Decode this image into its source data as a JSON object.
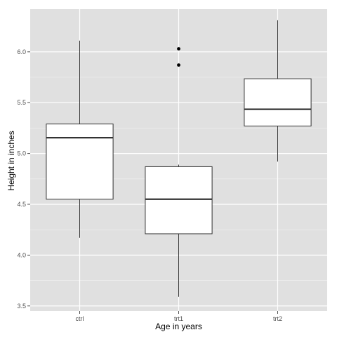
{
  "chart_data": {
    "type": "boxplot",
    "title": "",
    "xlabel": "Age in years",
    "ylabel": "Height in inches",
    "ylim": [
      3.45,
      6.42
    ],
    "yticks": [
      3.5,
      4.0,
      4.5,
      5.0,
      5.5,
      6.0
    ],
    "ytick_labels": [
      "3.5",
      "4.0",
      "4.5",
      "5.0",
      "5.5",
      "6.0"
    ],
    "grid": true,
    "colors": {
      "panel": "#e0e0e0",
      "grid_major": "#ffffff",
      "grid_minor": "#f0f0f0",
      "box_fill": "#ffffff",
      "stroke": "#333333"
    },
    "categories": [
      "ctrl",
      "trt1",
      "trt2"
    ],
    "boxes": [
      {
        "category": "ctrl",
        "whisker_low": 4.17,
        "q1": 4.55,
        "median": 5.155,
        "q3": 5.29,
        "whisker_high": 6.11,
        "outliers": []
      },
      {
        "category": "trt1",
        "whisker_low": 3.59,
        "q1": 4.21,
        "median": 4.55,
        "q3": 4.87,
        "whisker_high": 4.89,
        "outliers": [
          5.87,
          6.03
        ]
      },
      {
        "category": "trt2",
        "whisker_low": 4.92,
        "q1": 5.27,
        "median": 5.435,
        "q3": 5.735,
        "whisker_high": 6.31,
        "outliers": []
      }
    ]
  }
}
